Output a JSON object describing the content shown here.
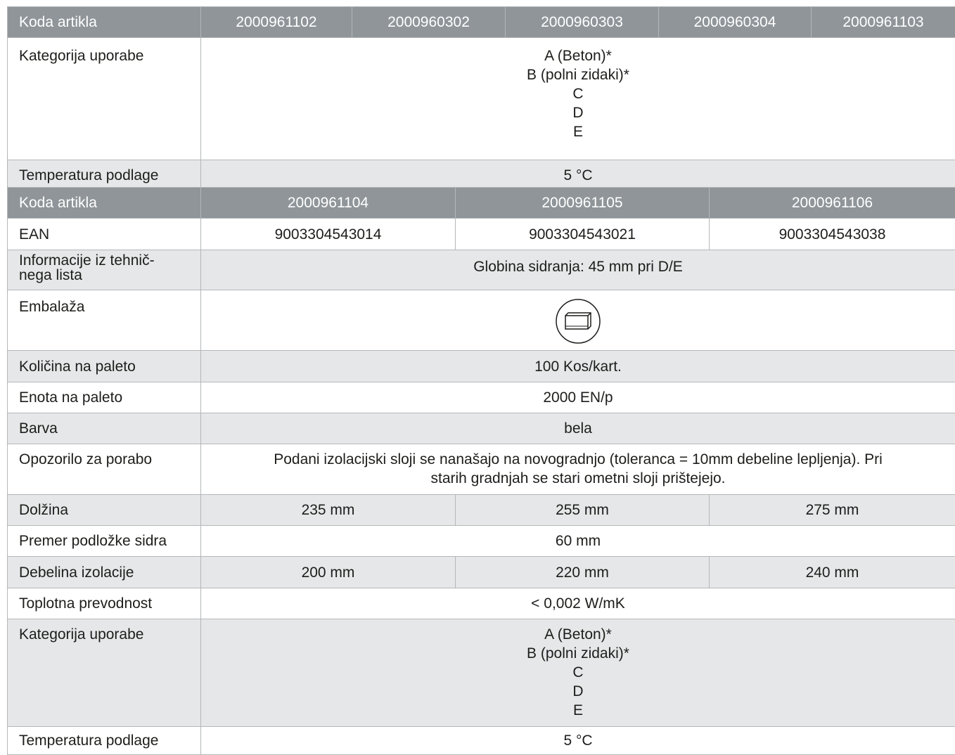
{
  "table1": {
    "header": {
      "label": "Koda artikla",
      "codes": [
        "2000961102",
        "2000960302",
        "2000960303",
        "2000960304",
        "2000961103"
      ]
    },
    "rows": {
      "kategorija": {
        "label": "Kategorija uporabe",
        "lines": [
          "A (Beton)*",
          "B (polni zidaki)*",
          "C",
          "D",
          "E"
        ]
      },
      "temperatura": {
        "label": "Temperatura podlage",
        "value": "5 °C"
      }
    }
  },
  "table2": {
    "header": {
      "label": "Koda artikla",
      "codes": [
        "2000961104",
        "2000961105",
        "2000961106"
      ]
    },
    "rows": {
      "ean": {
        "label": "EAN",
        "values": [
          "9003304543014",
          "9003304543021",
          "9003304543038"
        ]
      },
      "info": {
        "label_line1": "Informacije iz tehnič-",
        "label_line2": "nega lista",
        "value": "Globina sidranja: 45 mm pri D/E"
      },
      "embalaza": {
        "label": "Embalaža",
        "icon": "carton-box-icon"
      },
      "kolicina": {
        "label": "Količina na paleto",
        "value": "100 Kos/kart."
      },
      "enota": {
        "label": "Enota na paleto",
        "value": "2000 EN/p"
      },
      "barva": {
        "label": "Barva",
        "value": "bela"
      },
      "opozorilo": {
        "label": "Opozorilo za porabo",
        "line1": "Podani izolacijski sloji se nanašajo na novogradnjo (toleranca = 10mm debeline lepljenja). Pri",
        "line2": "starih gradnjah se stari ometni sloji prištejejo."
      },
      "dolzina": {
        "label": "Dolžina",
        "values": [
          "235 mm",
          "255 mm",
          "275 mm"
        ]
      },
      "premer": {
        "label": "Premer podložke sidra",
        "value": "60 mm"
      },
      "debelina": {
        "label": "Debelina izolacije",
        "values": [
          "200 mm",
          "220 mm",
          "240 mm"
        ]
      },
      "toplotna": {
        "label": "Toplotna prevodnost",
        "value": "< 0,002 W/mK"
      },
      "kategorija": {
        "label": "Kategorija uporabe",
        "lines": [
          "A (Beton)*",
          "B (polni zidaki)*",
          "C",
          "D",
          "E"
        ]
      },
      "temperatura": {
        "label": "Temperatura podlage",
        "value": "5 °C"
      }
    }
  }
}
